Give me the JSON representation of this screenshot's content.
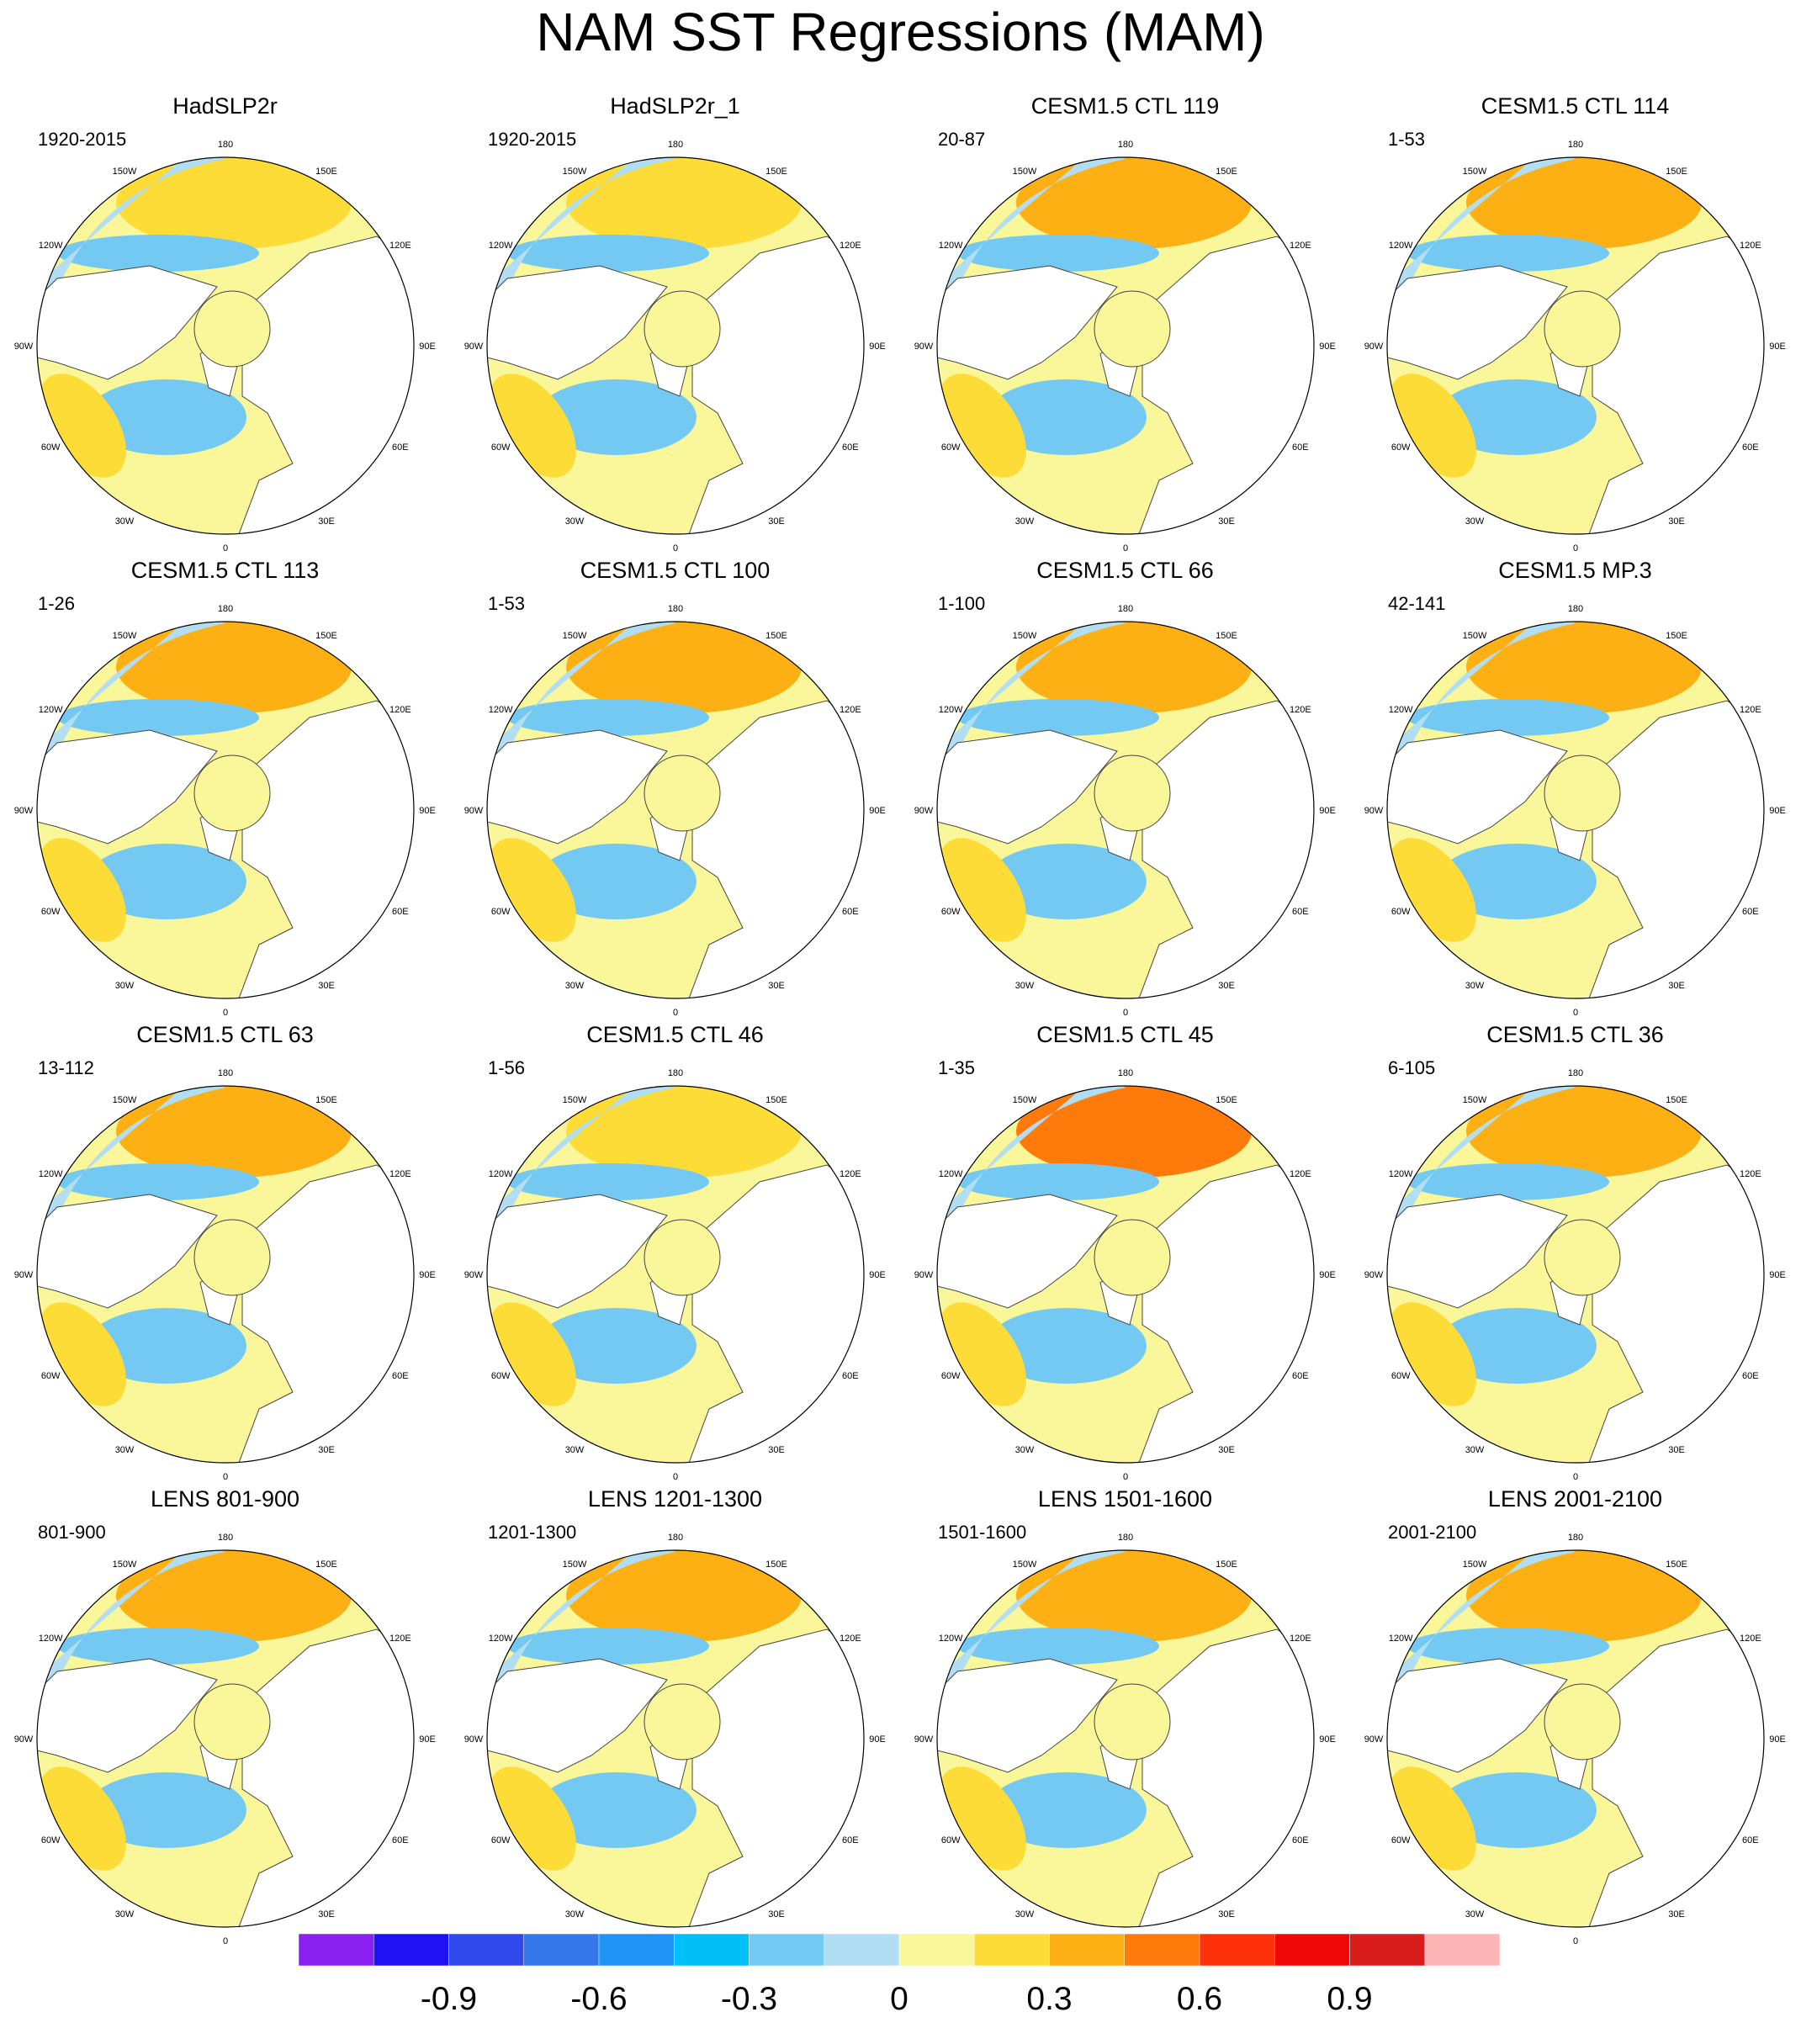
{
  "title": "NAM SST Regressions (MAM)",
  "longitude_labels": [
    "180",
    "150E",
    "120E",
    "90E",
    "60E",
    "30E",
    "0",
    "30W",
    "60W",
    "90W",
    "120W",
    "150W"
  ],
  "panels": [
    {
      "name": "HadSLP2r",
      "period": "1920-2015",
      "pacific": 0.2,
      "atlantic": -0.3
    },
    {
      "name": "HadSLP2r_1",
      "period": "1920-2015",
      "pacific": 0.2,
      "atlantic": -0.3
    },
    {
      "name": "CESM1.5 CTL 119",
      "period": "20-87",
      "pacific": 0.3,
      "atlantic": -0.3
    },
    {
      "name": "CESM1.5 CTL 114",
      "period": "1-53",
      "pacific": 0.4,
      "atlantic": -0.3
    },
    {
      "name": "CESM1.5 CTL 113",
      "period": "1-26",
      "pacific": 0.35,
      "atlantic": -0.3
    },
    {
      "name": "CESM1.5 CTL 100",
      "period": "1-53",
      "pacific": 0.35,
      "atlantic": -0.3
    },
    {
      "name": "CESM1.5 CTL 66",
      "period": "1-100",
      "pacific": 0.4,
      "atlantic": -0.3
    },
    {
      "name": "CESM1.5 MP.3",
      "period": "42-141",
      "pacific": 0.35,
      "atlantic": -0.2
    },
    {
      "name": "CESM1.5 CTL 63",
      "period": "13-112",
      "pacific": 0.3,
      "atlantic": -0.2
    },
    {
      "name": "CESM1.5 CTL 46",
      "period": "1-56",
      "pacific": 0.2,
      "atlantic": -0.2
    },
    {
      "name": "CESM1.5 CTL 45",
      "period": "1-35",
      "pacific": 0.5,
      "atlantic": -0.3
    },
    {
      "name": "CESM1.5 CTL 36",
      "period": "6-105",
      "pacific": 0.4,
      "atlantic": -0.3
    },
    {
      "name": "LENS 801-900",
      "period": "801-900",
      "pacific": 0.35,
      "atlantic": -0.2
    },
    {
      "name": "LENS 1201-1300",
      "period": "1201-1300",
      "pacific": 0.4,
      "atlantic": -0.2
    },
    {
      "name": "LENS 1501-1600",
      "period": "1501-1600",
      "pacific": 0.35,
      "atlantic": -0.2
    },
    {
      "name": "LENS 2001-2100",
      "period": "2001-2100",
      "pacific": 0.4,
      "atlantic": -0.2
    }
  ],
  "colorbar": {
    "boundaries": [
      -1.2,
      -1.05,
      -0.9,
      -0.75,
      -0.6,
      -0.45,
      -0.3,
      -0.15,
      0,
      0.15,
      0.3,
      0.45,
      0.6,
      0.75,
      0.9,
      1.05,
      1.2
    ],
    "colors": [
      "#8a1ff2",
      "#1e12f5",
      "#2e49ec",
      "#3377ea",
      "#1f93f6",
      "#00c1f7",
      "#73c9f2",
      "#b2def3",
      "#faf79b",
      "#fddc37",
      "#fdb014",
      "#fe7a0b",
      "#fe3109",
      "#f20707",
      "#d91c1c",
      "#fdb4b4"
    ],
    "tick_labels": [
      "-0.9",
      "-0.6",
      "-0.3",
      "0",
      "0.3",
      "0.6",
      "0.9"
    ],
    "tick_values": [
      -0.9,
      -0.6,
      -0.3,
      0,
      0.3,
      0.6,
      0.9
    ]
  }
}
